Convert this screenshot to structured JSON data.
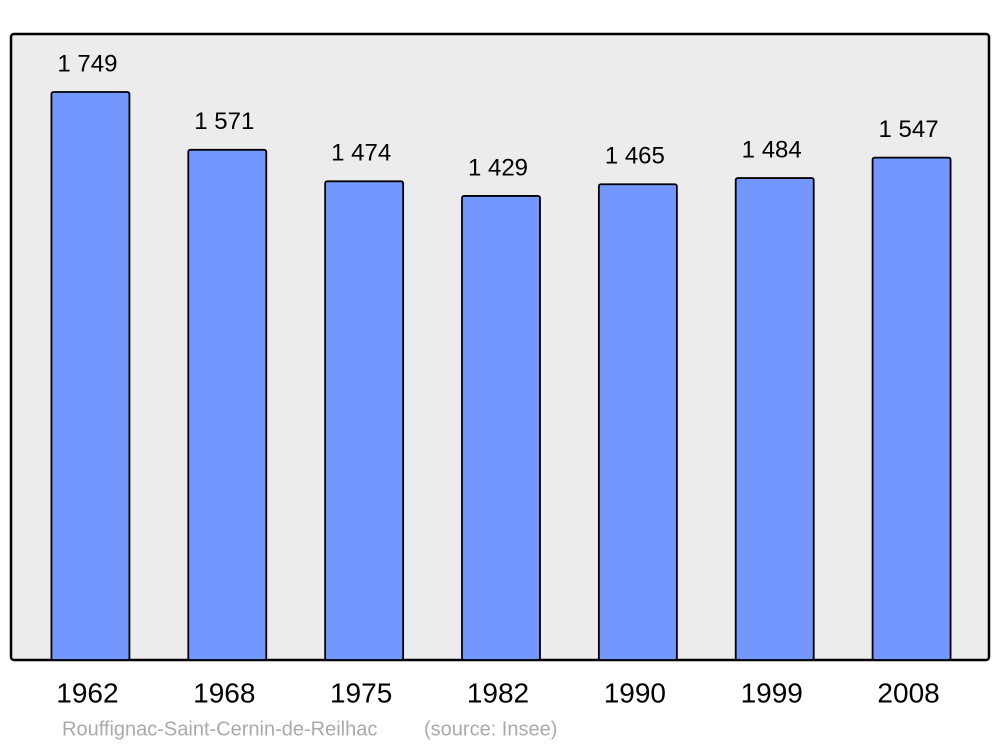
{
  "chart_data": {
    "type": "bar",
    "caption": "Rouffignac-Saint-Cernin-de-Reilhac",
    "source": "(source: Insee)",
    "categories": [
      "1962",
      "1968",
      "1975",
      "1982",
      "1990",
      "1999",
      "2008"
    ],
    "values": [
      1749,
      1571,
      1474,
      1429,
      1465,
      1484,
      1547
    ],
    "value_labels": [
      "1 749",
      "1 571",
      "1 474",
      "1 429",
      "1 465",
      "1 484",
      "1 547"
    ],
    "color": "#7396ff"
  }
}
